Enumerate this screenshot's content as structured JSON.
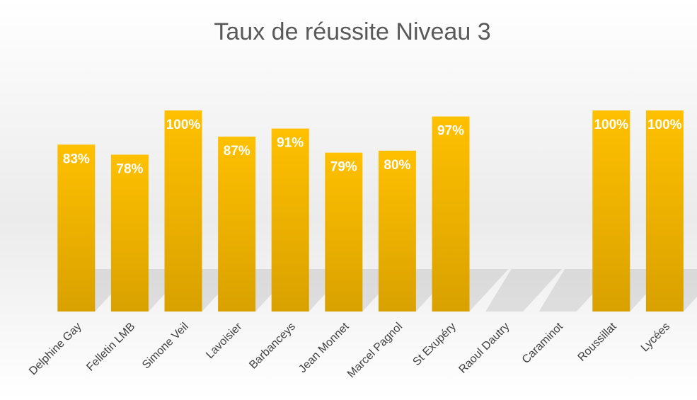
{
  "chart_data": {
    "type": "bar",
    "title": "Taux de réussite Niveau 3",
    "categories": [
      "Delphine Gay",
      "Felletin LMB",
      "Simone Veil",
      "Lavoisier",
      "Barbanceys",
      "Jean Monnet",
      "Marcel Pagnol",
      "St Exupéry",
      "Raoul Dautry",
      "Caraminot",
      "Roussillat",
      "Lycées"
    ],
    "values": [
      83,
      78,
      100,
      87,
      91,
      79,
      80,
      97,
      null,
      null,
      100,
      100
    ],
    "value_labels": [
      "83%",
      "78%",
      "100%",
      "87%",
      "91%",
      "79%",
      "80%",
      "97%",
      null,
      null,
      "100%",
      "100%"
    ],
    "color": "#ffc000"
  }
}
